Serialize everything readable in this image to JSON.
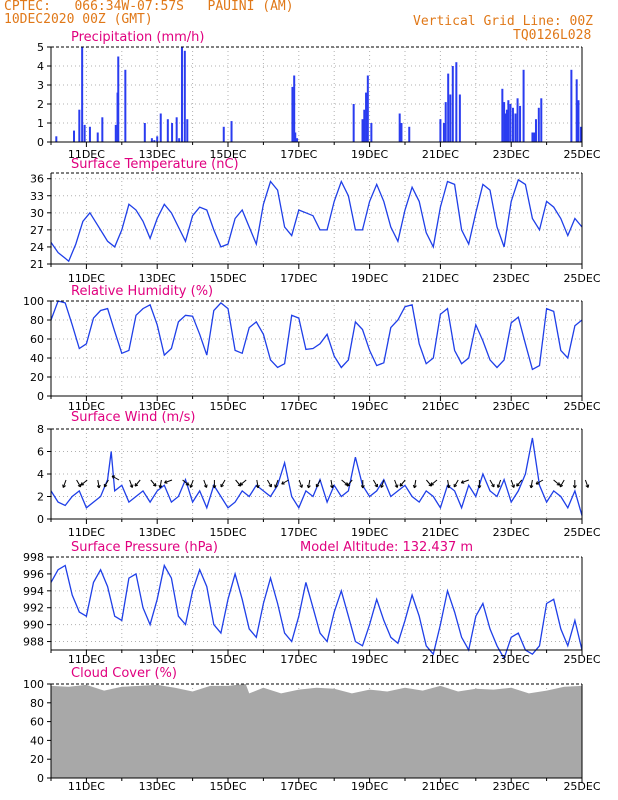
{
  "header": {
    "left_line1": "CPTEC:   066:34W-07:57S   PAUINI (AM)",
    "left_line2": "10DEC2020 00Z (GMT)",
    "right_line1": "Vertical Grid Line: 00Z",
    "right_line2": "TQ0126L028"
  },
  "colors": {
    "header": "#e07818",
    "title": "#e0007f",
    "line": "#1f3fe8",
    "bar": "#2a3cf0",
    "cloud": "#a8a8a8",
    "grid": "#b0b0b0"
  },
  "x_axis": {
    "start_day": 10,
    "end_day": 25,
    "tick_labels": [
      "11DEC",
      "13DEC",
      "15DEC",
      "17DEC",
      "19DEC",
      "21DEC",
      "23DEC",
      "25DEC"
    ]
  },
  "chart_data": [
    {
      "type": "bar",
      "title": "Precipitation (mm/h)",
      "ylim": [
        0,
        5
      ],
      "yticks": [
        0,
        1,
        2,
        3,
        4,
        5
      ],
      "x": [
        10.15,
        10.65,
        10.8,
        10.88,
        10.95,
        11.1,
        11.32,
        11.45,
        11.83,
        11.88,
        11.9,
        12.1,
        12.65,
        12.85,
        12.92,
        13.0,
        13.1,
        13.3,
        13.42,
        13.55,
        13.62,
        13.7,
        13.78,
        13.85,
        14.88,
        15.1,
        16.82,
        16.87,
        16.9,
        16.95,
        18.55,
        18.8,
        18.85,
        18.9,
        18.95,
        19.05,
        19.85,
        19.9,
        20.12,
        21.0,
        21.1,
        21.15,
        21.22,
        21.28,
        21.35,
        21.45,
        21.55,
        22.75,
        22.8,
        22.85,
        22.88,
        22.92,
        22.98,
        23.05,
        23.12,
        23.18,
        23.25,
        23.35,
        23.6,
        23.65,
        23.7,
        23.78,
        23.85,
        24.7,
        24.85,
        24.9,
        24.97
      ],
      "values": [
        0.3,
        0.6,
        1.7,
        5.0,
        0.9,
        0.8,
        0.5,
        1.3,
        0.9,
        2.6,
        4.5,
        3.8,
        1.0,
        0.2,
        0.1,
        0.3,
        1.5,
        1.2,
        1.0,
        1.3,
        0.2,
        5.0,
        4.8,
        1.2,
        0.8,
        1.1,
        2.9,
        3.5,
        0.5,
        0.2,
        2.0,
        1.2,
        1.7,
        2.6,
        3.5,
        1.0,
        1.5,
        1.0,
        0.8,
        1.2,
        1.0,
        2.1,
        3.6,
        2.5,
        4.0,
        4.2,
        2.5,
        2.8,
        2.1,
        1.5,
        1.7,
        2.2,
        2.0,
        1.8,
        1.5,
        2.3,
        1.9,
        3.8,
        0.5,
        0.5,
        1.2,
        1.8,
        2.3,
        3.8,
        3.3,
        2.2,
        0.8
      ]
    },
    {
      "type": "line",
      "title": "Surface Temperature (nC)",
      "ylim": [
        21,
        37
      ],
      "yticks": [
        21,
        24,
        27,
        30,
        33,
        36
      ],
      "x": [
        10.0,
        10.2,
        10.4,
        10.5,
        10.7,
        10.9,
        11.1,
        11.3,
        11.5,
        11.6,
        11.8,
        12.0,
        12.2,
        12.4,
        12.6,
        12.8,
        13.0,
        13.2,
        13.4,
        13.6,
        13.8,
        14.0,
        14.2,
        14.4,
        14.6,
        14.8,
        15.0,
        15.2,
        15.4,
        15.6,
        15.8,
        16.0,
        16.2,
        16.4,
        16.6,
        16.8,
        17.0,
        17.2,
        17.4,
        17.6,
        17.8,
        18.0,
        18.2,
        18.4,
        18.6,
        18.8,
        19.0,
        19.2,
        19.4,
        19.6,
        19.8,
        20.0,
        20.2,
        20.4,
        20.6,
        20.8,
        21.0,
        21.2,
        21.4,
        21.6,
        21.8,
        22.0,
        22.2,
        22.4,
        22.6,
        22.8,
        23.0,
        23.2,
        23.4,
        23.6,
        23.8,
        24.0,
        24.2,
        24.4,
        24.6,
        24.8,
        25.0
      ],
      "values": [
        24.8,
        23.0,
        22.0,
        21.5,
        24.5,
        28.5,
        30.0,
        28.0,
        26.0,
        25.0,
        24.0,
        27.0,
        31.5,
        30.5,
        28.5,
        25.5,
        29.0,
        31.5,
        30.0,
        27.5,
        25.0,
        29.5,
        31.0,
        30.5,
        27.0,
        24.0,
        24.5,
        29.0,
        30.5,
        27.5,
        24.5,
        31.5,
        35.5,
        34.0,
        27.5,
        26.0,
        30.5,
        30.0,
        29.5,
        27.0,
        27.0,
        32.0,
        35.5,
        33.0,
        27.0,
        27.0,
        32.0,
        35.0,
        32.0,
        27.5,
        25.0,
        30.5,
        34.5,
        32.0,
        26.5,
        24.0,
        31.0,
        35.5,
        35.0,
        27.0,
        24.5,
        30.0,
        35.0,
        34.0,
        27.5,
        24.0,
        32.0,
        35.8,
        35.0,
        29.0,
        27.0,
        32.0,
        31.0,
        29.0,
        26.0,
        29.0,
        27.5
      ]
    },
    {
      "type": "line",
      "title": "Relative Humidity (%)",
      "ylim": [
        0,
        100
      ],
      "yticks": [
        0,
        20,
        40,
        60,
        80,
        100
      ],
      "x": [
        10.0,
        10.2,
        10.4,
        10.6,
        10.8,
        11.0,
        11.2,
        11.4,
        11.6,
        11.8,
        12.0,
        12.2,
        12.4,
        12.6,
        12.8,
        13.0,
        13.2,
        13.4,
        13.6,
        13.8,
        14.0,
        14.2,
        14.4,
        14.6,
        14.8,
        15.0,
        15.2,
        15.4,
        15.6,
        15.8,
        16.0,
        16.2,
        16.4,
        16.6,
        16.8,
        17.0,
        17.2,
        17.4,
        17.6,
        17.8,
        18.0,
        18.2,
        18.4,
        18.6,
        18.8,
        19.0,
        19.2,
        19.4,
        19.6,
        19.8,
        20.0,
        20.2,
        20.4,
        20.6,
        20.8,
        21.0,
        21.2,
        21.4,
        21.6,
        21.8,
        22.0,
        22.2,
        22.4,
        22.6,
        22.8,
        23.0,
        23.2,
        23.4,
        23.6,
        23.8,
        24.0,
        24.2,
        24.4,
        24.6,
        24.8,
        25.0
      ],
      "values": [
        80,
        100,
        98,
        75,
        50,
        55,
        82,
        90,
        92,
        68,
        45,
        48,
        85,
        92,
        96,
        75,
        43,
        50,
        78,
        85,
        84,
        65,
        43,
        90,
        98,
        92,
        48,
        45,
        72,
        78,
        65,
        38,
        30,
        34,
        85,
        82,
        49,
        50,
        55,
        65,
        42,
        30,
        38,
        78,
        70,
        48,
        32,
        35,
        72,
        80,
        94,
        96,
        55,
        34,
        40,
        86,
        92,
        48,
        34,
        40,
        75,
        58,
        38,
        30,
        38,
        77,
        83,
        55,
        28,
        32,
        92,
        89,
        48,
        40,
        74,
        80
      ]
    },
    {
      "type": "line",
      "title": "Surface Wind (m/s)",
      "ylim": [
        0,
        8
      ],
      "yticks": [
        0,
        2,
        4,
        6,
        8
      ],
      "x": [
        10.0,
        10.2,
        10.4,
        10.6,
        10.8,
        11.0,
        11.2,
        11.4,
        11.6,
        11.7,
        11.8,
        12.0,
        12.2,
        12.4,
        12.6,
        12.8,
        13.0,
        13.2,
        13.4,
        13.6,
        13.8,
        14.0,
        14.2,
        14.4,
        14.6,
        14.8,
        15.0,
        15.2,
        15.4,
        15.6,
        15.8,
        16.0,
        16.2,
        16.4,
        16.6,
        16.8,
        17.0,
        17.2,
        17.4,
        17.6,
        17.8,
        18.0,
        18.2,
        18.4,
        18.6,
        18.8,
        19.0,
        19.2,
        19.4,
        19.6,
        19.8,
        20.0,
        20.2,
        20.4,
        20.6,
        20.8,
        21.0,
        21.2,
        21.4,
        21.6,
        21.8,
        22.0,
        22.2,
        22.4,
        22.6,
        22.8,
        23.0,
        23.2,
        23.4,
        23.6,
        23.8,
        24.0,
        24.2,
        24.4,
        24.6,
        24.8,
        25.0
      ],
      "values": [
        2.5,
        1.5,
        1.2,
        2.0,
        2.5,
        1.0,
        1.5,
        2.0,
        3.5,
        6.0,
        2.5,
        3.0,
        1.5,
        2.0,
        2.5,
        1.5,
        2.5,
        3.0,
        1.5,
        2.0,
        3.5,
        1.5,
        2.5,
        1.0,
        3.0,
        2.0,
        1.0,
        1.5,
        2.5,
        2.0,
        3.0,
        2.5,
        2.0,
        3.0,
        5.0,
        2.0,
        1.0,
        2.5,
        2.0,
        3.5,
        1.5,
        3.0,
        2.0,
        2.5,
        5.5,
        3.0,
        2.0,
        2.5,
        3.5,
        2.0,
        2.5,
        3.0,
        2.0,
        1.5,
        2.5,
        2.0,
        1.0,
        3.0,
        2.5,
        1.0,
        3.0,
        2.0,
        4.0,
        2.5,
        2.0,
        3.5,
        1.5,
        2.5,
        4.0,
        7.2,
        3.0,
        1.5,
        2.5,
        2.0,
        1.0,
        2.5,
        0.3
      ]
    },
    {
      "type": "line",
      "title": "Surface Pressure (hPa)",
      "annotation": "Model Altitude: 132.437 m",
      "ylim": [
        987,
        998
      ],
      "yticks": [
        988,
        990,
        992,
        994,
        996,
        998
      ],
      "x": [
        10.0,
        10.2,
        10.4,
        10.6,
        10.8,
        11.0,
        11.2,
        11.4,
        11.6,
        11.8,
        12.0,
        12.2,
        12.4,
        12.6,
        12.8,
        13.0,
        13.2,
        13.4,
        13.6,
        13.8,
        14.0,
        14.2,
        14.4,
        14.6,
        14.8,
        15.0,
        15.2,
        15.4,
        15.6,
        15.8,
        16.0,
        16.2,
        16.4,
        16.6,
        16.8,
        17.0,
        17.2,
        17.4,
        17.6,
        17.8,
        18.0,
        18.2,
        18.4,
        18.6,
        18.8,
        19.0,
        19.2,
        19.4,
        19.6,
        19.8,
        20.0,
        20.2,
        20.4,
        20.6,
        20.8,
        21.0,
        21.2,
        21.4,
        21.6,
        21.8,
        22.0,
        22.2,
        22.4,
        22.6,
        22.8,
        23.0,
        23.2,
        23.4,
        23.6,
        23.8,
        24.0,
        24.2,
        24.4,
        24.6,
        24.8,
        25.0
      ],
      "values": [
        995,
        996.5,
        997.0,
        993.5,
        991.5,
        991,
        995,
        996.5,
        994.5,
        991.0,
        990.5,
        995.5,
        996.0,
        992.0,
        990.0,
        993.0,
        997.0,
        995.5,
        991.0,
        990.0,
        994.0,
        996.5,
        994.5,
        990.0,
        989.0,
        993.0,
        996.0,
        993.0,
        989.5,
        988.5,
        992.5,
        995.5,
        992.5,
        989.0,
        988.0,
        991.0,
        995.0,
        992.0,
        989.0,
        988.0,
        991.5,
        994.0,
        991.0,
        988.0,
        987.5,
        990.0,
        993.0,
        990.5,
        988.5,
        987.8,
        990.5,
        993.5,
        991.0,
        987.5,
        986.5,
        990.0,
        994.0,
        991.5,
        988.5,
        987.0,
        991.0,
        992.5,
        989.5,
        987.5,
        986.0,
        988.5,
        989.0,
        987.0,
        986.5,
        987.5,
        992.5,
        993.0,
        989.5,
        987.5,
        990.5,
        987.0
      ]
    },
    {
      "type": "area",
      "title": "Cloud Cover (%)",
      "ylim": [
        0,
        100
      ],
      "yticks": [
        0,
        20,
        40,
        60,
        80,
        100
      ],
      "x": [
        10.0,
        10.5,
        11.0,
        11.5,
        12.0,
        12.5,
        13.0,
        13.5,
        14.0,
        14.5,
        15.0,
        15.5,
        15.6,
        16.0,
        16.5,
        17.0,
        17.5,
        18.0,
        18.5,
        19.0,
        19.5,
        20.0,
        20.5,
        21.0,
        21.5,
        22.0,
        22.5,
        23.0,
        23.5,
        24.0,
        24.5,
        25.0
      ],
      "values": [
        98,
        97,
        99,
        93,
        97,
        98,
        99,
        96,
        92,
        98,
        98,
        100,
        90,
        96,
        90,
        94,
        96,
        95,
        90,
        94,
        92,
        96,
        93,
        98,
        92,
        95,
        94,
        96,
        90,
        93,
        97,
        98
      ]
    }
  ]
}
